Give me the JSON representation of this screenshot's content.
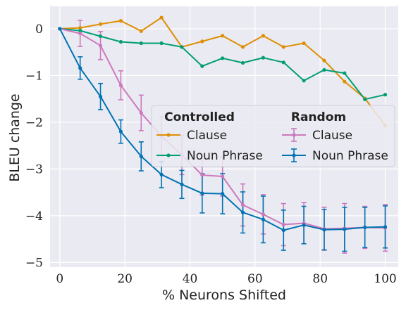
{
  "chart_data": {
    "type": "line",
    "xlabel": "% Neurons Shifted",
    "ylabel": "BLEU change",
    "xlim": [
      -3,
      104
    ],
    "ylim": [
      -5.1,
      0.48
    ],
    "xticks": [
      0,
      20,
      40,
      60,
      80,
      100
    ],
    "yticks": [
      0,
      -1,
      -2,
      -3,
      -4,
      -5
    ],
    "xtick_labels": [
      "0",
      "20",
      "40",
      "60",
      "80",
      "100"
    ],
    "ytick_labels": [
      "0",
      "−1",
      "−2",
      "−3",
      "−4",
      "−5"
    ],
    "grid": true,
    "legend": {
      "placement": "center-right",
      "groups": [
        {
          "title": "Controlled",
          "entries": [
            "Clause",
            "Noun Phrase"
          ]
        },
        {
          "title": "Random",
          "entries": [
            "Clause",
            "Noun Phrase"
          ]
        }
      ]
    },
    "series": [
      {
        "name": "Clause",
        "group": "Controlled",
        "color": "#de8f05",
        "x": [
          0,
          6.25,
          12.5,
          18.75,
          25,
          31.25,
          37.5,
          43.75,
          50,
          56.25,
          62.5,
          68.75,
          75,
          81.25,
          87.5,
          93.75,
          100
        ],
        "y": [
          0,
          0.02,
          0.1,
          0.17,
          -0.05,
          0.24,
          -0.39,
          -0.27,
          -0.15,
          -0.39,
          -0.15,
          -0.39,
          -0.31,
          -0.68,
          -1.13,
          -1.49,
          -2.07
        ]
      },
      {
        "name": "Noun Phrase",
        "group": "Controlled",
        "color": "#029e73",
        "x": [
          0,
          6.25,
          12.5,
          18.75,
          25,
          31.25,
          37.5,
          43.75,
          50,
          56.25,
          62.5,
          68.75,
          75,
          81.25,
          87.5,
          93.75,
          100
        ],
        "y": [
          0,
          -0.04,
          -0.16,
          -0.28,
          -0.31,
          -0.31,
          -0.39,
          -0.8,
          -0.63,
          -0.73,
          -0.62,
          -0.72,
          -1.11,
          -0.88,
          -0.95,
          -1.51,
          -1.41
        ]
      },
      {
        "name": "Clause",
        "group": "Random",
        "color": "#cc78bc",
        "x": [
          0,
          6.25,
          12.5,
          18.75,
          25,
          31.25,
          37.5,
          43.75,
          50,
          56.25,
          62.5,
          68.75,
          75,
          81.25,
          87.5,
          93.75,
          100
        ],
        "y": [
          0,
          -0.1,
          -0.36,
          -1.21,
          -1.8,
          -2.3,
          -2.7,
          -3.13,
          -3.16,
          -3.77,
          -3.97,
          -4.19,
          -4.16,
          -4.28,
          -4.27,
          -4.25,
          -4.26
        ],
        "err": [
          0,
          0.28,
          0.3,
          0.31,
          0.38,
          0.42,
          0.42,
          0.43,
          0.42,
          0.45,
          0.42,
          0.45,
          0.44,
          0.46,
          0.53,
          0.45,
          0.5
        ]
      },
      {
        "name": "Noun Phrase",
        "group": "Random",
        "color": "#0173b2",
        "x": [
          0,
          6.25,
          12.5,
          18.75,
          25,
          31.25,
          37.5,
          43.75,
          50,
          56.25,
          62.5,
          68.75,
          75,
          81.25,
          87.5,
          93.75,
          100
        ],
        "y": [
          0,
          -0.84,
          -1.45,
          -2.2,
          -2.73,
          -3.12,
          -3.33,
          -3.52,
          -3.53,
          -3.93,
          -4.08,
          -4.31,
          -4.2,
          -4.3,
          -4.29,
          -4.25,
          -4.24
        ],
        "err": [
          0,
          0.24,
          0.28,
          0.25,
          0.31,
          0.28,
          0.3,
          0.42,
          0.43,
          0.44,
          0.5,
          0.43,
          0.4,
          0.43,
          0.47,
          0.43,
          0.45
        ]
      }
    ]
  }
}
